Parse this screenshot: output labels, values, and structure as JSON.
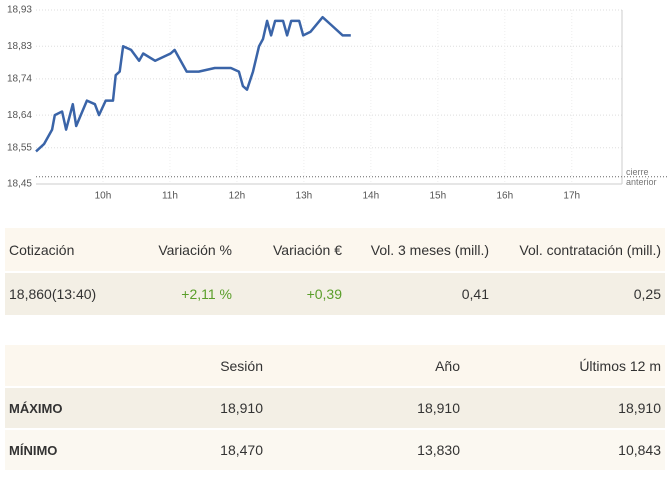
{
  "chart_data": {
    "type": "line",
    "x": [
      9.0,
      9.12,
      9.24,
      9.28,
      9.39,
      9.45,
      9.55,
      9.6,
      9.76,
      9.88,
      9.94,
      10.04,
      10.15,
      10.19,
      10.25,
      10.3,
      10.42,
      10.54,
      10.6,
      10.78,
      11.01,
      11.07,
      11.25,
      11.43,
      11.67,
      11.91,
      12.03,
      12.09,
      12.15,
      12.24,
      12.33,
      12.39,
      12.45,
      12.51,
      12.57,
      12.69,
      12.75,
      12.81,
      12.93,
      12.99,
      13.1,
      13.28,
      13.4,
      13.58,
      13.7
    ],
    "values": [
      18.54,
      18.56,
      18.6,
      18.64,
      18.65,
      18.6,
      18.67,
      18.61,
      18.68,
      18.67,
      18.64,
      18.68,
      18.68,
      18.75,
      18.76,
      18.83,
      18.82,
      18.79,
      18.81,
      18.79,
      18.81,
      18.82,
      18.76,
      18.76,
      18.77,
      18.77,
      18.76,
      18.72,
      18.71,
      18.76,
      18.83,
      18.85,
      18.9,
      18.86,
      18.9,
      18.9,
      18.86,
      18.9,
      18.9,
      18.86,
      18.87,
      18.91,
      18.89,
      18.86,
      18.86
    ],
    "color": "#3a64a8",
    "xlim": [
      9,
      17.75
    ],
    "xticks": [
      {
        "value": 10,
        "label": "10h"
      },
      {
        "value": 11,
        "label": "11h"
      },
      {
        "value": 12,
        "label": "12h"
      },
      {
        "value": 13,
        "label": "13h"
      },
      {
        "value": 14,
        "label": "14h"
      },
      {
        "value": 15,
        "label": "15h"
      },
      {
        "value": 16,
        "label": "16h"
      },
      {
        "value": 17,
        "label": "17h"
      }
    ],
    "ylim": [
      18.45,
      18.93
    ],
    "yticks": [
      {
        "value": 18.45,
        "label": "18,45"
      },
      {
        "value": 18.55,
        "label": "18,55"
      },
      {
        "value": 18.64,
        "label": "18,64"
      },
      {
        "value": 18.74,
        "label": "18,74"
      },
      {
        "value": 18.83,
        "label": "18,83"
      },
      {
        "value": 18.93,
        "label": "18,93"
      }
    ],
    "grid": true,
    "reference_line": {
      "label": "cierre anterior",
      "value": 18.47
    }
  },
  "quote_table": {
    "header": [
      "Cotización",
      "Variación %",
      "Variación €",
      "Vol. 3 meses (mill.)",
      "Vol. contratación (mill.)"
    ],
    "rows": [
      [
        "18,860(13:40)",
        "+2,11 %",
        "+0,39",
        "0,41",
        "0,25"
      ]
    ]
  },
  "range_table": {
    "header": [
      "Sesión",
      "Año",
      "Últimos 12 m"
    ],
    "rows": [
      [
        "MÁXIMO",
        "18,910",
        "18,910",
        "18,910"
      ],
      [
        "MÍNIMO",
        "18,470",
        "13,830",
        "10,843"
      ]
    ]
  }
}
